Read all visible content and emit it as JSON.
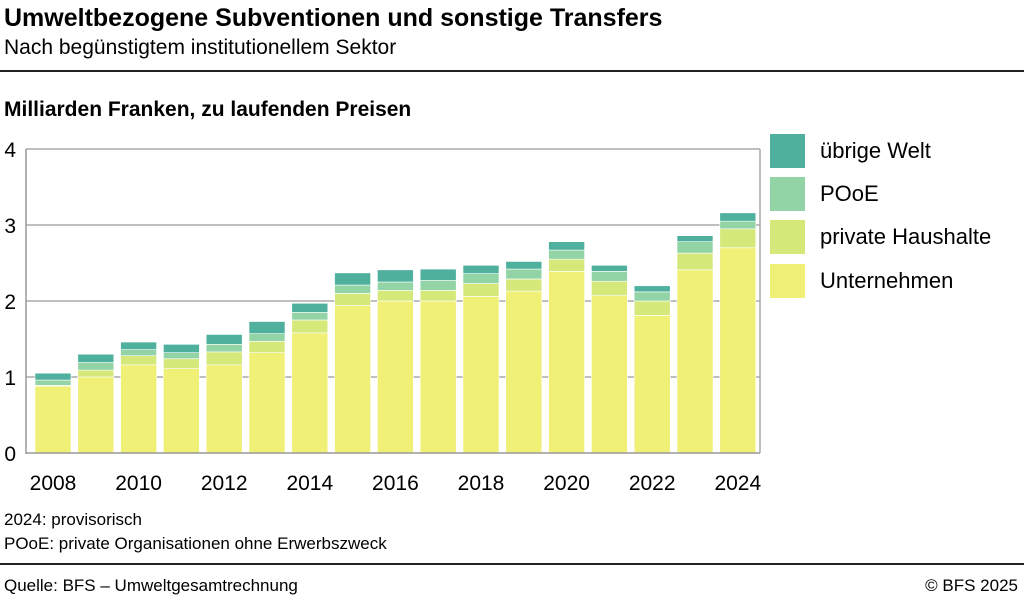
{
  "header": {
    "title": "Umweltbezogene Subventionen und sonstige Transfers",
    "subtitle": "Nach begünstigtem institutionellem Sektor"
  },
  "footer": {
    "note1": "2024: provisorisch",
    "note2": "POoE: private Organisationen ohne Erwerbszweck",
    "source": "Quelle: BFS – Umweltgesamtrechnung",
    "copyright": "© BFS 2025"
  },
  "chart_data": {
    "type": "bar",
    "stacked": true,
    "title": "Umweltbezogene Subventionen und sonstige Transfers",
    "subtitle": "Nach begünstigtem institutionellem Sektor",
    "ylabel": "Milliarden Franken, zu laufenden Preisen",
    "ylim": [
      0,
      4
    ],
    "yticks": [
      0,
      1,
      2,
      3,
      4
    ],
    "grid": true,
    "legend": "right",
    "categories": [
      2008,
      2009,
      2010,
      2011,
      2012,
      2013,
      2014,
      2015,
      2016,
      2017,
      2018,
      2019,
      2020,
      2021,
      2022,
      2023,
      2024
    ],
    "xticks": [
      "2008",
      "2010",
      "2012",
      "2014",
      "2016",
      "2018",
      "2020",
      "2022",
      "2024"
    ],
    "series": [
      {
        "name": "Unternehmen",
        "color": "#f0ef76",
        "values": [
          0.88,
          1.0,
          1.16,
          1.11,
          1.16,
          1.32,
          1.58,
          1.94,
          2.0,
          2.0,
          2.06,
          2.13,
          2.39,
          2.07,
          1.81,
          2.41,
          2.7
        ]
      },
      {
        "name": "private Haushalte",
        "color": "#d5e87a",
        "values": [
          0.01,
          0.09,
          0.12,
          0.13,
          0.17,
          0.15,
          0.17,
          0.16,
          0.14,
          0.14,
          0.17,
          0.16,
          0.16,
          0.19,
          0.19,
          0.22,
          0.25
        ]
      },
      {
        "name": "POoE",
        "color": "#93d4a6",
        "values": [
          0.07,
          0.1,
          0.08,
          0.08,
          0.1,
          0.1,
          0.1,
          0.11,
          0.11,
          0.13,
          0.13,
          0.13,
          0.12,
          0.13,
          0.12,
          0.15,
          0.1
        ]
      },
      {
        "name": "übrige Welt",
        "color": "#4fb09e",
        "values": [
          0.09,
          0.11,
          0.1,
          0.11,
          0.13,
          0.16,
          0.12,
          0.16,
          0.16,
          0.15,
          0.11,
          0.1,
          0.11,
          0.08,
          0.08,
          0.08,
          0.11
        ]
      }
    ]
  }
}
